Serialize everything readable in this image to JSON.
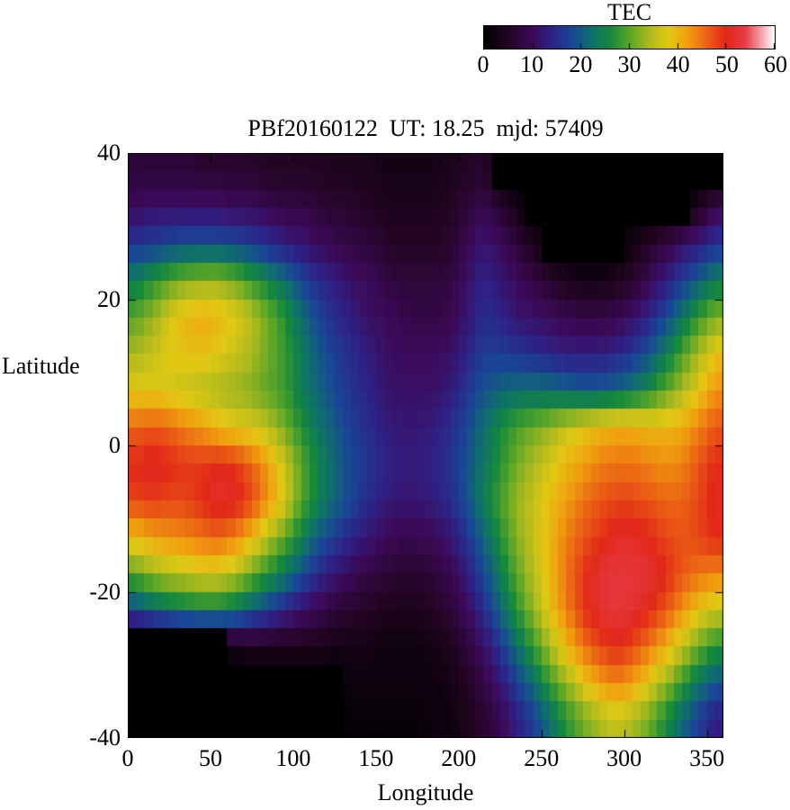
{
  "title": "PBf20160122  UT: 18.25  mjd: 57409",
  "colorbar": {
    "label": "TEC",
    "min": 0,
    "max": 60,
    "ticks": [
      0,
      10,
      20,
      30,
      40,
      50,
      60
    ]
  },
  "x_axis": {
    "label": "Longitude",
    "min": 0,
    "max": 360,
    "ticks": [
      0,
      50,
      100,
      150,
      200,
      250,
      300,
      350
    ]
  },
  "y_axis": {
    "label": "Latitude",
    "min": -40,
    "max": 40,
    "ticks": [
      40,
      20,
      0,
      -20,
      -40
    ]
  },
  "chart_data": {
    "type": "heatmap",
    "title": "PBf20160122  UT: 18.25  mjd: 57409",
    "xlabel": "Longitude",
    "ylabel": "Latitude",
    "value_label": "TEC",
    "xlim": [
      0,
      360
    ],
    "ylim": [
      -40,
      40
    ],
    "zlim": [
      0,
      60
    ],
    "grid": "off",
    "cell_size_deg": [
      10,
      5
    ],
    "lon_order": "left-to-right, 0 to 360 in 10-degree bins (centers 5..355)",
    "lat_order": "top-to-bottom, 40 to -40 in 5-degree bins (centers 37.5..-37.5)",
    "masked_value": 0,
    "values": [
      [
        7,
        7,
        7,
        7,
        6,
        6,
        6,
        6,
        5,
        5,
        5,
        5,
        4,
        4,
        4,
        3,
        3,
        3,
        3,
        4,
        5,
        6,
        0,
        0,
        0,
        0,
        0,
        0,
        0,
        0,
        0,
        0,
        0,
        0,
        0,
        0
      ],
      [
        10,
        11,
        11,
        11,
        11,
        11,
        10,
        10,
        9,
        8,
        8,
        7,
        6,
        6,
        5,
        4,
        4,
        4,
        4,
        5,
        7,
        9,
        6,
        3,
        0,
        0,
        0,
        0,
        0,
        0,
        0,
        0,
        0,
        0,
        4,
        9
      ],
      [
        16,
        17,
        18,
        19,
        19,
        19,
        18,
        17,
        15,
        13,
        12,
        10,
        9,
        8,
        7,
        6,
        5,
        5,
        5,
        6,
        9,
        12,
        10,
        7,
        4,
        0,
        0,
        0,
        0,
        0,
        3,
        5,
        8,
        11,
        13,
        16
      ],
      [
        24,
        27,
        30,
        32,
        33,
        33,
        31,
        28,
        25,
        22,
        18,
        15,
        13,
        11,
        10,
        8,
        7,
        7,
        7,
        8,
        11,
        14,
        12,
        10,
        8,
        6,
        4,
        3,
        3,
        4,
        6,
        9,
        13,
        17,
        20,
        24
      ],
      [
        30,
        33,
        37,
        40,
        41,
        40,
        38,
        35,
        31,
        27,
        22,
        18,
        15,
        13,
        11,
        10,
        9,
        8,
        8,
        9,
        12,
        15,
        14,
        12,
        11,
        10,
        9,
        8,
        8,
        9,
        11,
        14,
        18,
        23,
        28,
        32
      ],
      [
        34,
        36,
        38,
        39,
        39,
        38,
        36,
        34,
        31,
        28,
        24,
        20,
        17,
        15,
        13,
        11,
        10,
        10,
        10,
        11,
        14,
        17,
        17,
        16,
        15,
        14,
        13,
        13,
        13,
        14,
        16,
        19,
        24,
        29,
        34,
        39
      ],
      [
        38,
        38,
        37,
        36,
        35,
        34,
        33,
        32,
        30,
        28,
        24,
        21,
        18,
        16,
        14,
        12,
        11,
        11,
        11,
        13,
        16,
        19,
        21,
        22,
        22,
        22,
        21,
        20,
        20,
        21,
        23,
        26,
        30,
        34,
        38,
        43
      ],
      [
        46,
        47,
        46,
        44,
        42,
        40,
        38,
        37,
        35,
        31,
        27,
        23,
        20,
        17,
        15,
        13,
        12,
        12,
        13,
        15,
        18,
        22,
        26,
        29,
        31,
        33,
        36,
        38,
        40,
        41,
        41,
        40,
        40,
        41,
        44,
        47
      ],
      [
        50,
        51,
        50,
        49,
        49,
        50,
        49,
        46,
        42,
        36,
        30,
        25,
        21,
        18,
        16,
        14,
        13,
        13,
        14,
        16,
        19,
        23,
        27,
        31,
        34,
        37,
        40,
        42,
        44,
        45,
        45,
        44,
        43,
        44,
        47,
        50
      ],
      [
        48,
        49,
        48,
        48,
        50,
        52,
        51,
        48,
        43,
        37,
        30,
        25,
        21,
        18,
        15,
        13,
        12,
        12,
        13,
        15,
        19,
        24,
        29,
        33,
        36,
        39,
        42,
        45,
        47,
        48,
        48,
        47,
        46,
        46,
        48,
        51
      ],
      [
        40,
        42,
        43,
        44,
        45,
        46,
        44,
        40,
        35,
        30,
        25,
        20,
        17,
        14,
        12,
        10,
        9,
        9,
        10,
        12,
        16,
        21,
        27,
        32,
        36,
        40,
        44,
        47,
        49,
        51,
        51,
        50,
        48,
        47,
        48,
        50
      ],
      [
        30,
        33,
        35,
        36,
        37,
        37,
        35,
        31,
        27,
        23,
        19,
        15,
        12,
        10,
        8,
        7,
        6,
        6,
        7,
        9,
        13,
        18,
        24,
        30,
        35,
        40,
        45,
        49,
        52,
        53,
        53,
        52,
        50,
        47,
        45,
        44
      ],
      [
        18,
        21,
        23,
        24,
        25,
        25,
        23,
        20,
        17,
        14,
        11,
        9,
        7,
        6,
        5,
        4,
        4,
        4,
        5,
        7,
        10,
        15,
        21,
        27,
        33,
        39,
        44,
        49,
        52,
        53,
        52,
        50,
        47,
        43,
        39,
        36
      ],
      [
        0,
        0,
        0,
        0,
        0,
        0,
        3,
        4,
        4,
        4,
        4,
        4,
        3,
        3,
        3,
        2,
        2,
        2,
        3,
        4,
        7,
        11,
        16,
        22,
        28,
        34,
        40,
        45,
        48,
        50,
        48,
        45,
        41,
        36,
        31,
        27
      ],
      [
        0,
        0,
        0,
        0,
        0,
        0,
        0,
        0,
        0,
        0,
        0,
        0,
        0,
        2,
        2,
        2,
        2,
        2,
        2,
        3,
        5,
        8,
        12,
        17,
        22,
        28,
        33,
        38,
        42,
        44,
        42,
        38,
        33,
        28,
        23,
        19
      ],
      [
        0,
        0,
        0,
        0,
        0,
        0,
        0,
        0,
        0,
        0,
        0,
        0,
        0,
        1,
        1,
        1,
        1,
        1,
        2,
        2,
        4,
        6,
        9,
        13,
        17,
        22,
        27,
        31,
        34,
        36,
        34,
        31,
        26,
        21,
        17,
        13
      ]
    ],
    "colormap_stops": [
      [
        0,
        "#000000"
      ],
      [
        5,
        "#230523"
      ],
      [
        10,
        "#3c0a5a"
      ],
      [
        14,
        "#2d2387"
      ],
      [
        18,
        "#194696"
      ],
      [
        22,
        "#0f6e6e"
      ],
      [
        26,
        "#14883c"
      ],
      [
        30,
        "#5aa528"
      ],
      [
        34,
        "#aab91e"
      ],
      [
        38,
        "#e1c814"
      ],
      [
        42,
        "#f0a00f"
      ],
      [
        46,
        "#eb6414"
      ],
      [
        50,
        "#e12819"
      ],
      [
        54,
        "#e63c46"
      ],
      [
        57,
        "#f596a0"
      ],
      [
        60,
        "#ffffff"
      ]
    ]
  }
}
